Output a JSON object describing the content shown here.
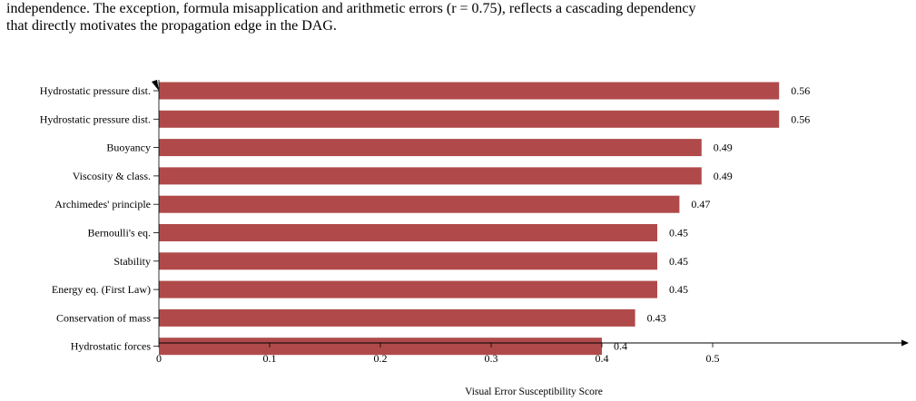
{
  "paragraph": {
    "line1": "independence. The exception, formula misapplication and arithmetic errors (r = 0.75), reflects a cascading dependency",
    "line2": "that directly motivates the propagation edge in the DAG."
  },
  "chart_data": {
    "type": "bar",
    "orientation": "horizontal",
    "categories": [
      "Hydrostatic pressure dist.",
      "Hydrostatic pressure dist.",
      "Buoyancy",
      "Viscosity & class.",
      "Archimedes' principle",
      "Bernoulli's eq.",
      "Stability",
      "Energy eq. (First Law)",
      "Conservation of mass",
      "Hydrostatic forces"
    ],
    "values": [
      0.56,
      0.56,
      0.49,
      0.49,
      0.47,
      0.45,
      0.45,
      0.45,
      0.43,
      0.4
    ],
    "value_labels": [
      "0.56",
      "0.56",
      "0.49",
      "0.49",
      "0.47",
      "0.45",
      "0.45",
      "0.45",
      "0.43",
      "0.4"
    ],
    "xticks": [
      "0",
      "0.1",
      "0.2",
      "0.3",
      "0.4",
      "0.5"
    ],
    "xtick_values": [
      0,
      0.1,
      0.2,
      0.3,
      0.4,
      0.5
    ],
    "xlabel": "Visual Error Susceptibility Score",
    "xlim": [
      0,
      0.68
    ],
    "bar_color": "#b04a4a",
    "grid": false
  }
}
